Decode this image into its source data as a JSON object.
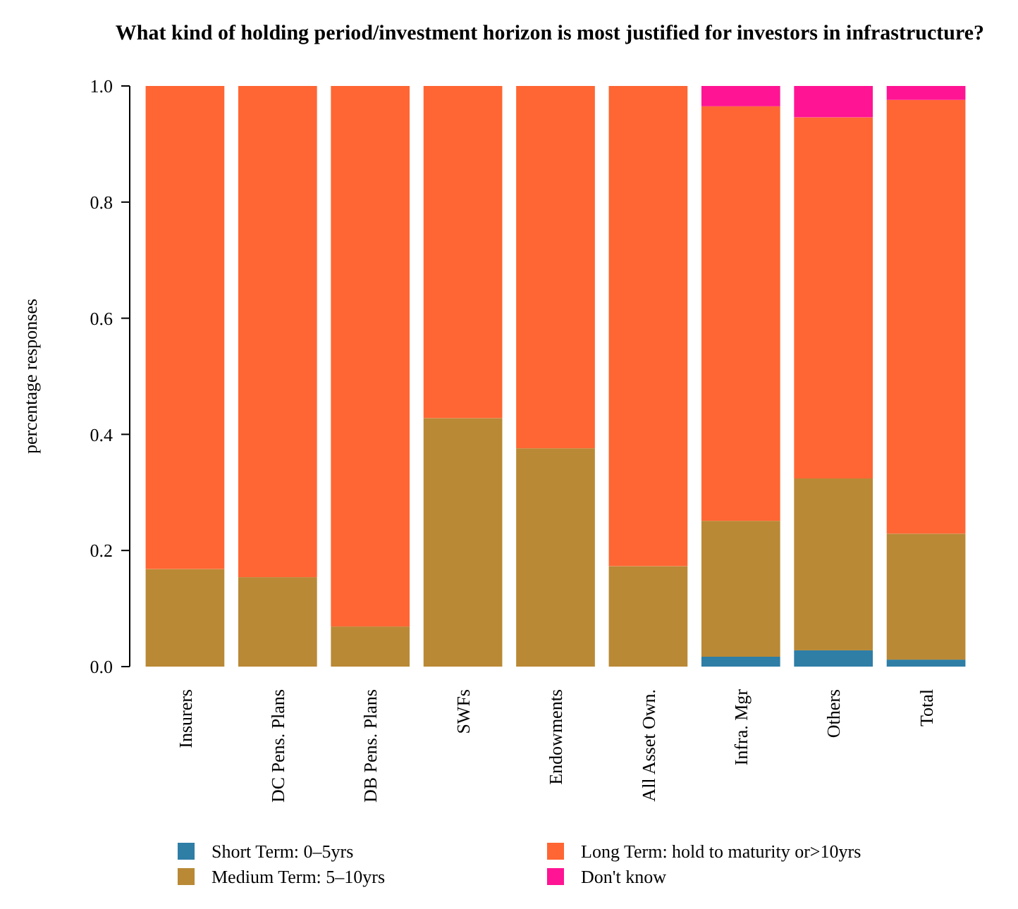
{
  "chart_data": {
    "type": "bar",
    "title": "What kind of holding period/investment horizon is most justified for investors in infrastructure?",
    "ylabel": "percentage responses",
    "categories": [
      "Insurers",
      "DC Pens. Plans",
      "DB Pens. Plans",
      "SWFs",
      "Endowments",
      "All Asset Own.",
      "Infra. Mgr",
      "Others",
      "Total"
    ],
    "stacked": true,
    "ylim": [
      0,
      1
    ],
    "yticks": [
      {
        "value": 0,
        "label": "0.0"
      },
      {
        "value": 0.2,
        "label": "0.2"
      },
      {
        "value": 0.4,
        "label": "0.4"
      },
      {
        "value": 0.6,
        "label": "0.6"
      },
      {
        "value": 0.8,
        "label": "0.8"
      },
      {
        "value": 1,
        "label": "1.0"
      }
    ],
    "grid": false,
    "legend": "bottom",
    "series": [
      {
        "name": "Short Term: 0–5yrs",
        "color": "#2e7ea6",
        "values": [
          0,
          0,
          0,
          0,
          0,
          0,
          0.017,
          0.028,
          0.012
        ]
      },
      {
        "name": "Medium Term: 5–10yrs",
        "color": "#b98935",
        "values": [
          0.168,
          0.154,
          0.069,
          0.428,
          0.376,
          0.173,
          0.234,
          0.296,
          0.217
        ]
      },
      {
        "name": "Long Term: hold to maturity or>10yrs",
        "color": "#ff6633",
        "values": [
          0.832,
          0.846,
          0.931,
          0.572,
          0.624,
          0.827,
          0.714,
          0.622,
          0.747
        ]
      },
      {
        "name": "Don't know",
        "color": "#ff1493",
        "values": [
          0,
          0,
          0,
          0,
          0,
          0,
          0.035,
          0.054,
          0.024
        ]
      }
    ]
  }
}
